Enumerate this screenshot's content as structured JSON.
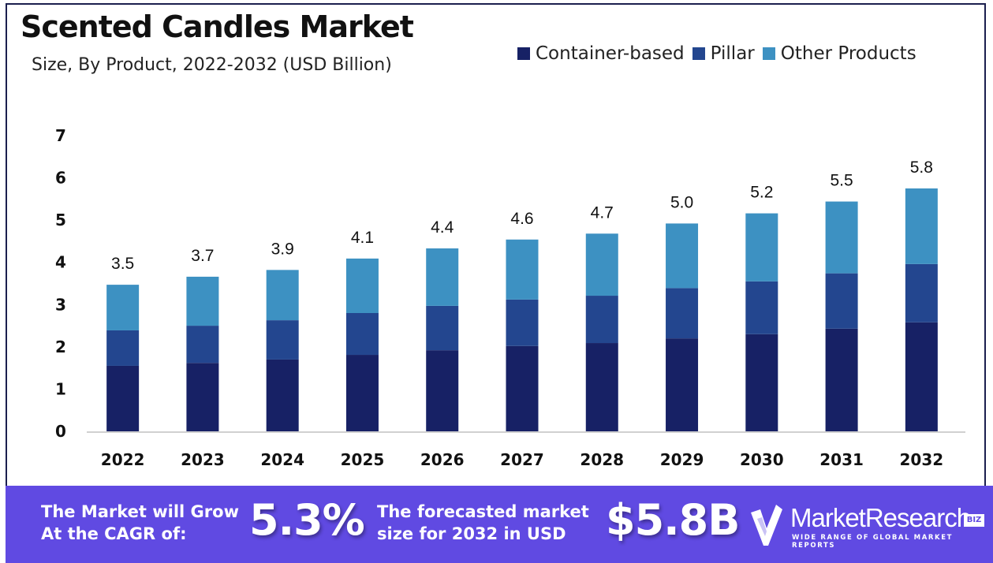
{
  "header": {
    "title": "Scented Candles Market",
    "subtitle": "Size, By Product, 2022-2032 (USD Billion)"
  },
  "legend": [
    {
      "label": "Container-based",
      "color": "#172165"
    },
    {
      "label": "Pillar",
      "color": "#23468f"
    },
    {
      "label": "Other Products",
      "color": "#3d91c2"
    }
  ],
  "chart_data": {
    "type": "bar",
    "stacked": true,
    "title": "Scented Candles Market",
    "subtitle": "Size, By Product, 2022-2032 (USD Billion)",
    "xlabel": "",
    "ylabel": "",
    "ylim": [
      0,
      7
    ],
    "yticks": [
      0,
      1,
      2,
      3,
      4,
      5,
      6,
      7
    ],
    "grid": false,
    "legend_position": "top-right",
    "categories": [
      "2022",
      "2023",
      "2024",
      "2025",
      "2026",
      "2027",
      "2028",
      "2029",
      "2030",
      "2031",
      "2032"
    ],
    "series": [
      {
        "name": "Container-based",
        "color": "#172165",
        "values": [
          1.55,
          1.62,
          1.7,
          1.81,
          1.92,
          2.02,
          2.09,
          2.2,
          2.3,
          2.43,
          2.58
        ]
      },
      {
        "name": "Pillar",
        "color": "#23468f",
        "values": [
          0.84,
          0.88,
          0.93,
          0.99,
          1.05,
          1.1,
          1.12,
          1.19,
          1.25,
          1.31,
          1.38
        ]
      },
      {
        "name": "Other Products",
        "color": "#3d91c2",
        "values": [
          1.08,
          1.16,
          1.19,
          1.29,
          1.36,
          1.42,
          1.47,
          1.53,
          1.61,
          1.7,
          1.79
        ]
      }
    ],
    "totals": [
      3.5,
      3.7,
      3.9,
      4.1,
      4.4,
      4.6,
      4.7,
      5.0,
      5.2,
      5.5,
      5.8
    ],
    "total_labels": [
      "3.5",
      "3.7",
      "3.9",
      "4.1",
      "4.4",
      "4.6",
      "4.7",
      "5.0",
      "5.2",
      "5.5",
      "5.8"
    ]
  },
  "banner": {
    "cagr_text_line1": "The Market will Grow",
    "cagr_text_line2": "At the CAGR of:",
    "cagr_value": "5.3%",
    "forecast_text_line1": "The forecasted market",
    "forecast_text_line2": "size for 2032 in USD",
    "forecast_value": "$5.8B",
    "background_color": "#604ae2"
  },
  "logo": {
    "name": "MarketResearch",
    "badge": "BIZ",
    "tagline": "WIDE RANGE OF GLOBAL MARKET REPORTS",
    "icon": "checkmark-shield-icon"
  }
}
